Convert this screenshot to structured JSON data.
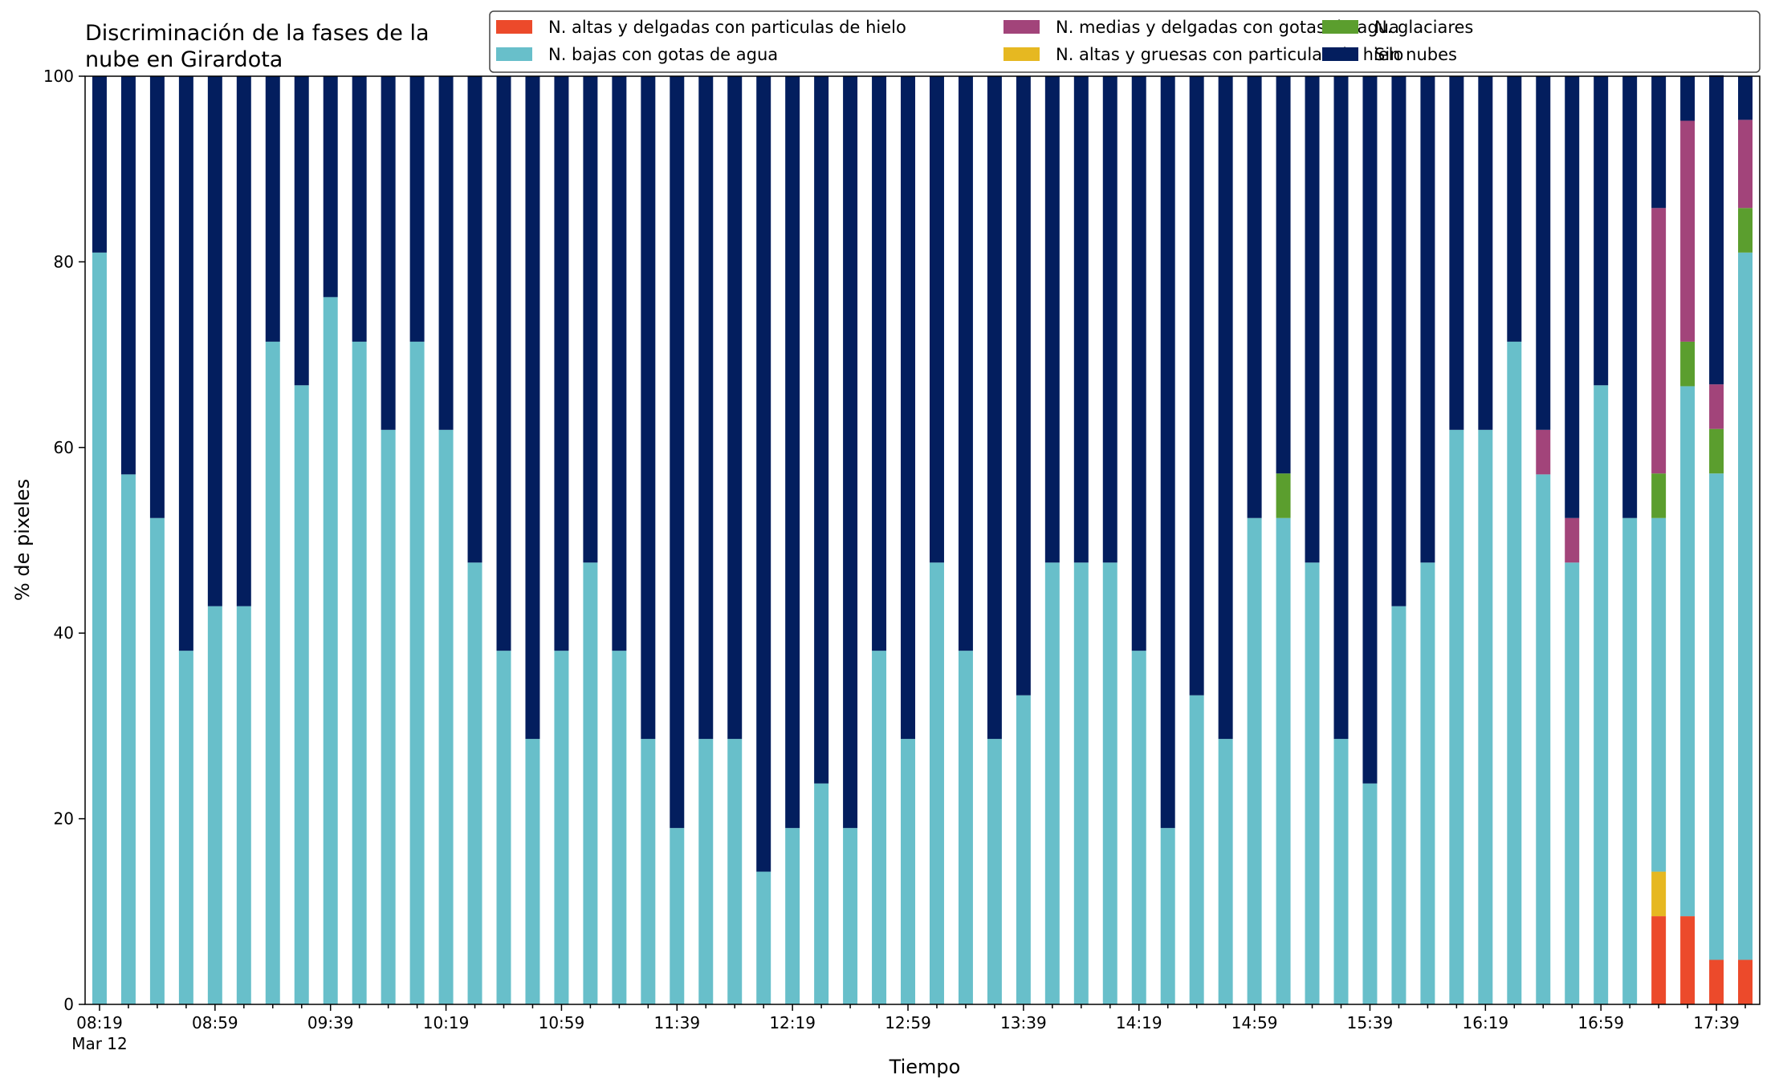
{
  "chart_data": {
    "type": "bar",
    "stacked": true,
    "title_lines": [
      "Discriminación de la fases de la",
      "nube en Girardota"
    ],
    "xlabel": "Tiempo",
    "ylabel": "% de pixeles",
    "ylim": [
      0,
      100
    ],
    "yticks": [
      "0",
      "20",
      "40",
      "60",
      "80",
      "100"
    ],
    "x_first_date_label": "Mar 12",
    "categories": [
      "08:19",
      "08:29",
      "08:39",
      "08:49",
      "08:59",
      "09:09",
      "09:19",
      "09:29",
      "09:39",
      "09:49",
      "09:59",
      "10:09",
      "10:19",
      "10:29",
      "10:39",
      "10:49",
      "10:59",
      "11:09",
      "11:19",
      "11:29",
      "11:39",
      "11:49",
      "11:59",
      "12:09",
      "12:19",
      "12:29",
      "12:39",
      "12:49",
      "12:59",
      "13:09",
      "13:19",
      "13:29",
      "13:39",
      "13:49",
      "13:59",
      "14:09",
      "14:19",
      "14:29",
      "14:39",
      "14:49",
      "14:59",
      "15:09",
      "15:19",
      "15:29",
      "15:39",
      "15:49",
      "15:59",
      "16:09",
      "16:19",
      "16:29",
      "16:39",
      "16:49",
      "16:59",
      "17:09",
      "17:19",
      "17:29",
      "17:39",
      "17:49"
    ],
    "x_tick_labels_shown": [
      "08:19",
      "08:59",
      "09:39",
      "10:19",
      "10:59",
      "11:39",
      "12:19",
      "12:59",
      "13:39",
      "14:19",
      "14:59",
      "15:39",
      "16:19",
      "16:59",
      "17:39"
    ],
    "series": [
      {
        "name": "N. altas y delgadas con particulas de hielo",
        "color": "#ec4a2b",
        "values": [
          0,
          0,
          0,
          0,
          0,
          0,
          0,
          0,
          0,
          0,
          0,
          0,
          0,
          0,
          0,
          0,
          0,
          0,
          0,
          0,
          0,
          0,
          0,
          0,
          0,
          0,
          0,
          0,
          0,
          0,
          0,
          0,
          0,
          0,
          0,
          0,
          0,
          0,
          0,
          0,
          0,
          0,
          0,
          0,
          0,
          0,
          0,
          0,
          0,
          0,
          0,
          0,
          0,
          0,
          9.5,
          9.5,
          4.8,
          4.8
        ]
      },
      {
        "name": "N. altas y gruesas con particulas de hielo",
        "color": "#e6b821",
        "values": [
          0,
          0,
          0,
          0,
          0,
          0,
          0,
          0,
          0,
          0,
          0,
          0,
          0,
          0,
          0,
          0,
          0,
          0,
          0,
          0,
          0,
          0,
          0,
          0,
          0,
          0,
          0,
          0,
          0,
          0,
          0,
          0,
          0,
          0,
          0,
          0,
          0,
          0,
          0,
          0,
          0,
          0,
          0,
          0,
          0,
          0,
          0,
          0,
          0,
          0,
          0,
          0,
          0,
          0,
          4.8,
          0,
          0,
          0
        ]
      },
      {
        "name": "N. bajas con gotas de agua",
        "color": "#68bfca",
        "values": [
          81,
          57.1,
          52.4,
          38.1,
          42.9,
          42.9,
          71.4,
          66.7,
          76.2,
          71.4,
          61.9,
          71.4,
          61.9,
          47.6,
          38.1,
          28.6,
          38.1,
          47.6,
          38.1,
          28.6,
          19,
          28.6,
          28.6,
          14.3,
          19,
          23.8,
          19,
          38.1,
          28.6,
          47.6,
          38.1,
          28.6,
          33.3,
          47.6,
          47.6,
          47.6,
          38.1,
          19,
          33.3,
          28.6,
          52.4,
          52.4,
          47.6,
          28.6,
          23.8,
          42.9,
          47.6,
          61.9,
          61.9,
          71.4,
          57.1,
          47.6,
          66.7,
          52.4,
          38.1,
          57.1,
          52.4,
          76.2
        ]
      },
      {
        "name": "N. glaciares",
        "color": "#5b9e2e",
        "values": [
          0,
          0,
          0,
          0,
          0,
          0,
          0,
          0,
          0,
          0,
          0,
          0,
          0,
          0,
          0,
          0,
          0,
          0,
          0,
          0,
          0,
          0,
          0,
          0,
          0,
          0,
          0,
          0,
          0,
          0,
          0,
          0,
          0,
          0,
          0,
          0,
          0,
          0,
          0,
          0,
          0,
          4.8,
          0,
          0,
          0,
          0,
          0,
          0,
          0,
          0,
          0,
          0,
          0,
          0,
          4.8,
          4.8,
          4.8,
          4.8
        ]
      },
      {
        "name": "N. medias y delgadas con gotas de agua",
        "color": "#a2447a",
        "values": [
          0,
          0,
          0,
          0,
          0,
          0,
          0,
          0,
          0,
          0,
          0,
          0,
          0,
          0,
          0,
          0,
          0,
          0,
          0,
          0,
          0,
          0,
          0,
          0,
          0,
          0,
          0,
          0,
          0,
          0,
          0,
          0,
          0,
          0,
          0,
          0,
          0,
          0,
          0,
          0,
          0,
          0,
          0,
          0,
          0,
          0,
          0,
          0,
          0,
          0,
          4.8,
          4.8,
          0,
          0,
          28.6,
          23.8,
          4.8,
          9.5
        ]
      },
      {
        "name": "Sin nubes",
        "color": "#031e5e",
        "values": [
          19,
          42.9,
          47.6,
          61.9,
          57.1,
          57.1,
          28.6,
          33.3,
          23.8,
          28.6,
          38.1,
          28.6,
          38.1,
          52.4,
          61.9,
          71.4,
          61.9,
          52.4,
          61.9,
          71.4,
          81,
          71.4,
          71.4,
          85.7,
          81,
          76.2,
          81,
          61.9,
          71.4,
          52.4,
          61.9,
          71.4,
          66.7,
          52.4,
          52.4,
          52.4,
          61.9,
          81,
          66.7,
          71.4,
          47.6,
          42.8,
          52.4,
          71.4,
          76.2,
          57.1,
          52.4,
          38.1,
          38.1,
          28.6,
          38.1,
          47.6,
          33.3,
          47.6,
          14.2,
          4.8,
          33.3,
          4.7
        ]
      }
    ],
    "legend_order": [
      0,
      2,
      4,
      1,
      3,
      5
    ],
    "legend_placement": "top-right",
    "grid": false
  }
}
